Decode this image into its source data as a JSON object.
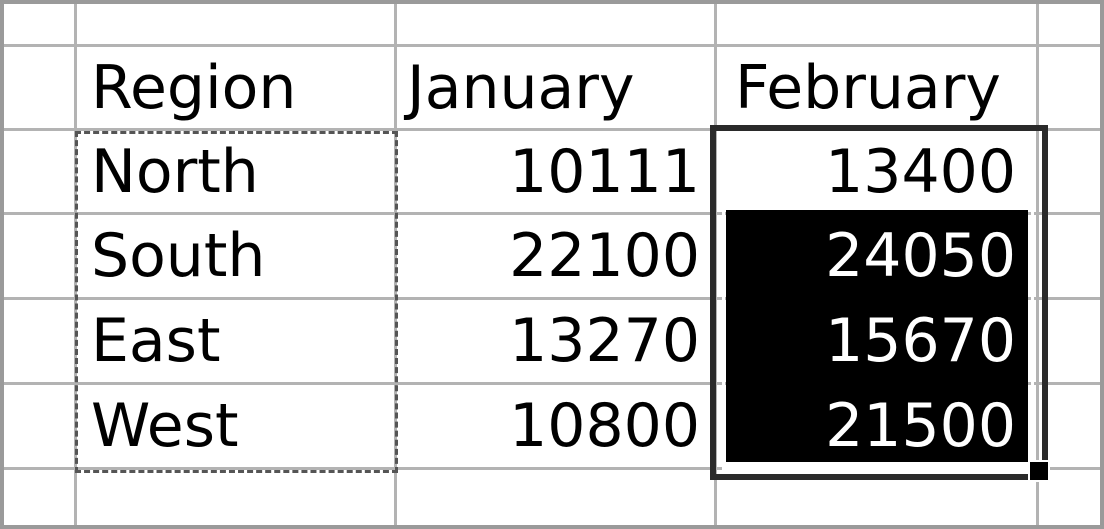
{
  "sheet": {
    "headers": [
      "Region",
      "January",
      "February"
    ],
    "rows": [
      {
        "region": "North",
        "january": "10111",
        "february": "13400"
      },
      {
        "region": "South",
        "january": "22100",
        "february": "24050"
      },
      {
        "region": "East",
        "january": "13270",
        "february": "15670"
      },
      {
        "region": "West",
        "january": "10800",
        "february": "21500"
      }
    ]
  },
  "colors": {
    "gridline": "#b3b3b3",
    "selection_fill": "#000000",
    "selection_text": "#ffffff",
    "marquee": "#555555"
  }
}
